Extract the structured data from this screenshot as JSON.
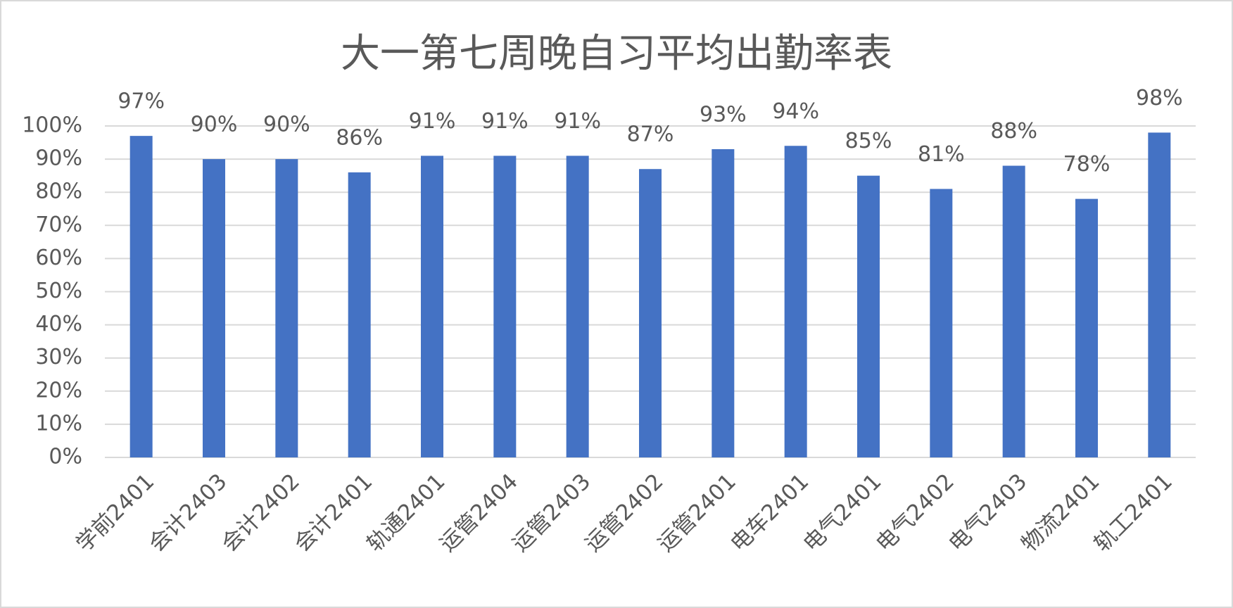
{
  "chart_data": {
    "type": "bar",
    "title": "大一第七周晚自习平均出勤率表",
    "categories": [
      "学前2401",
      "会计2403",
      "会计2402",
      "会计2401",
      "轨通2401",
      "运管2404",
      "运管2403",
      "运管2402",
      "运管2401",
      "电车2401",
      "电气2401",
      "电气2402",
      "电气2403",
      "物流2401",
      "轨工2401"
    ],
    "values": [
      97,
      90,
      90,
      86,
      91,
      91,
      91,
      87,
      93,
      94,
      85,
      81,
      88,
      78,
      98
    ],
    "value_labels": [
      "97%",
      "90%",
      "90%",
      "86%",
      "91%",
      "91%",
      "91%",
      "87%",
      "93%",
      "94%",
      "85%",
      "81%",
      "88%",
      "78%",
      "98%"
    ],
    "color": "#4472c4",
    "ylim": [
      0,
      100
    ],
    "yticks": [
      {
        "value": 0,
        "label": "0%"
      },
      {
        "value": 10,
        "label": "10%"
      },
      {
        "value": 20,
        "label": "20%"
      },
      {
        "value": 30,
        "label": "30%"
      },
      {
        "value": 40,
        "label": "40%"
      },
      {
        "value": 50,
        "label": "50%"
      },
      {
        "value": 60,
        "label": "60%"
      },
      {
        "value": 70,
        "label": "70%"
      },
      {
        "value": 80,
        "label": "80%"
      },
      {
        "value": 90,
        "label": "90%"
      },
      {
        "value": 100,
        "label": "100%"
      }
    ],
    "grid": true
  }
}
